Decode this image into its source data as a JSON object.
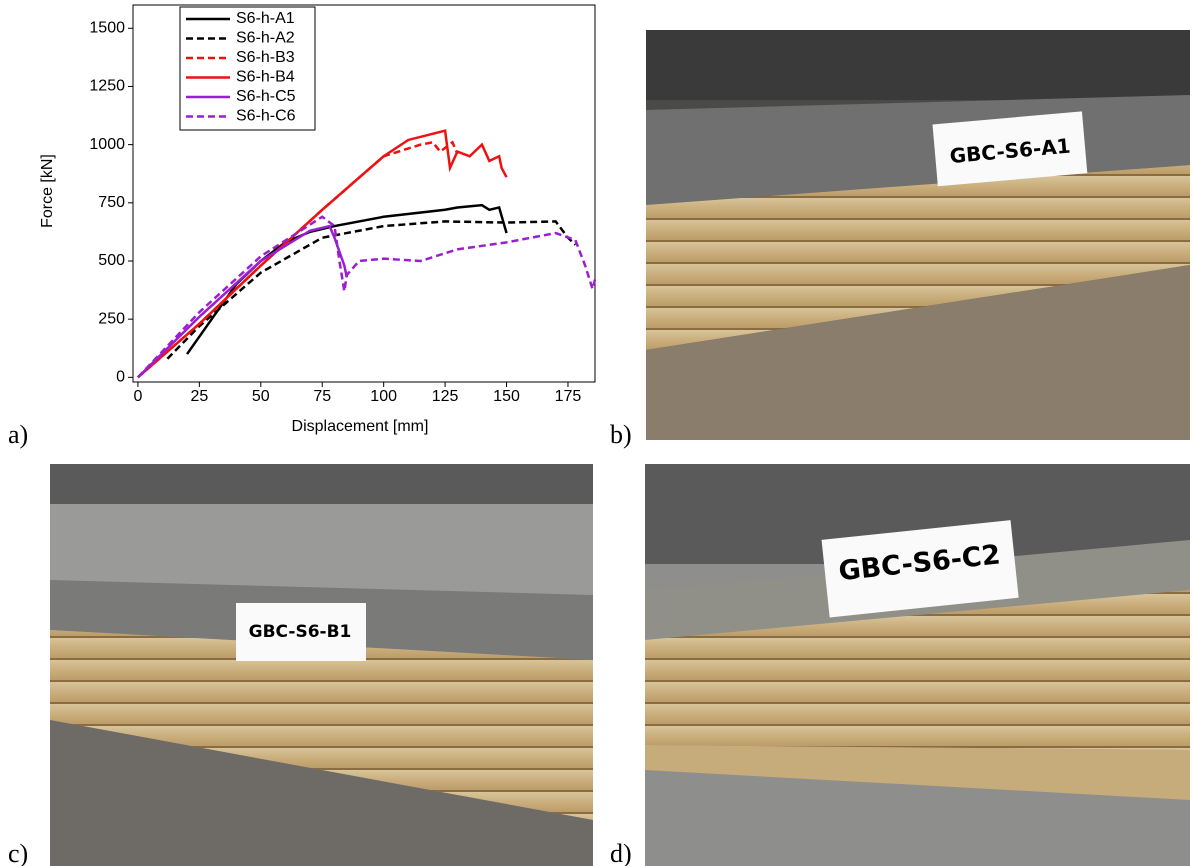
{
  "chart_data": {
    "type": "line",
    "x_label": "Displacement [mm]",
    "y_label": "Force [kN]",
    "xlim": [
      -2,
      186
    ],
    "ylim": [
      -20,
      1600
    ],
    "xticks": [
      0,
      25,
      50,
      75,
      100,
      125,
      150,
      175
    ],
    "yticks": [
      0,
      250,
      500,
      750,
      1000,
      1250,
      1500
    ],
    "series": [
      {
        "name": "S6-h-A1",
        "color": "#000000",
        "dash": false,
        "x": [
          20,
          30,
          40,
          50,
          60,
          70,
          80,
          100,
          125,
          130,
          140,
          143,
          147,
          150
        ],
        "values": [
          100,
          250,
          400,
          500,
          580,
          625,
          650,
          690,
          720,
          730,
          740,
          720,
          730,
          620
        ]
      },
      {
        "name": "S6-h-A2",
        "color": "#000000",
        "dash": true,
        "x": [
          12,
          25,
          50,
          75,
          100,
          125,
          150,
          170,
          175,
          178
        ],
        "values": [
          80,
          220,
          450,
          600,
          650,
          670,
          665,
          670,
          600,
          570
        ]
      },
      {
        "name": "S6-h-B3",
        "color": "#ee1111",
        "dash": true,
        "x": [
          0,
          25,
          50,
          75,
          100,
          115,
          120,
          123,
          128,
          130
        ],
        "values": [
          0,
          230,
          480,
          720,
          950,
          1000,
          1010,
          970,
          1010,
          960
        ]
      },
      {
        "name": "S6-h-B4",
        "color": "#ee1111",
        "dash": false,
        "x": [
          0,
          25,
          50,
          75,
          100,
          110,
          125,
          127,
          130,
          135,
          140,
          143,
          147,
          148,
          150
        ],
        "values": [
          0,
          230,
          480,
          720,
          950,
          1020,
          1060,
          900,
          970,
          950,
          1000,
          930,
          950,
          900,
          860
        ]
      },
      {
        "name": "S6-h-C5",
        "color": "#9b1fd0",
        "dash": false,
        "x": [
          0,
          25,
          50,
          70,
          78,
          80,
          84,
          85
        ],
        "values": [
          0,
          260,
          500,
          630,
          650,
          600,
          480,
          430
        ]
      },
      {
        "name": "S6-h-C6",
        "color": "#9b1fd0",
        "dash": true,
        "x": [
          0,
          25,
          50,
          75,
          80,
          82,
          84,
          85,
          90,
          100,
          115,
          130,
          150,
          170,
          178,
          182,
          185,
          186
        ],
        "values": [
          0,
          280,
          520,
          690,
          650,
          500,
          370,
          440,
          500,
          510,
          500,
          550,
          580,
          620,
          590,
          480,
          380,
          420
        ]
      }
    ]
  },
  "panels": [
    "a)",
    "b)",
    "c)",
    "d)"
  ],
  "photos": [
    {
      "sign": "GBC-S6-A1"
    },
    {
      "sign": "GBC-S6-B1"
    },
    {
      "sign": "GBC-S6-C2"
    }
  ]
}
